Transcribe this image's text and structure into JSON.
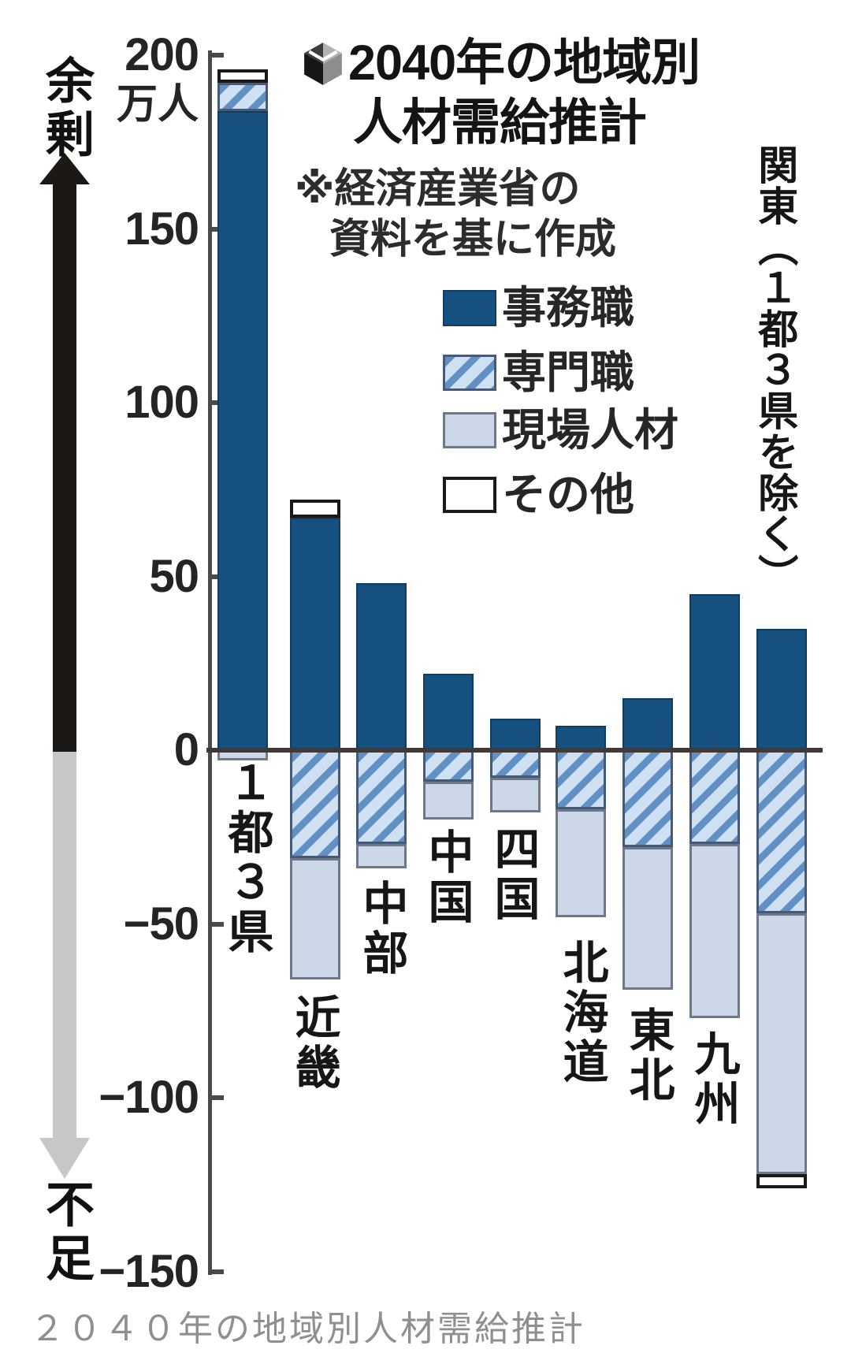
{
  "header": {
    "title_line1": "2040年の地域別",
    "title_line2": "人材需給推計",
    "note_line1": "※経済産業省の",
    "note_line2": "資料を基に作成"
  },
  "axis": {
    "unit": "万人",
    "surplus_label": "余剰",
    "shortage_label": "不足"
  },
  "legend": [
    {
      "label": "事務職",
      "swatch": "solid",
      "color": "#15507f"
    },
    {
      "label": "専門職",
      "swatch": "hatch",
      "color": "#6090c4"
    },
    {
      "label": "現場人材",
      "swatch": "light",
      "color": "#ccd7e8"
    },
    {
      "label": "その他",
      "swatch": "white",
      "color": "#ffffff"
    }
  ],
  "caption": "２０４０年の地域別人材需給推計",
  "chart_data": {
    "type": "bar",
    "stacked": true,
    "orientation": "vertical",
    "unit": "万人",
    "title": "2040年の地域別人材需給推計",
    "source_note": "※経済産業省の資料を基に作成",
    "ylabel_positive": "余剰",
    "ylabel_negative": "不足",
    "ylim": [
      -150,
      200
    ],
    "grid": false,
    "legend_position": "upper-center",
    "yticks": [
      {
        "label": "200",
        "value": 200
      },
      {
        "label": "150",
        "value": 150
      },
      {
        "label": "100",
        "value": 100
      },
      {
        "label": "50",
        "value": 50
      },
      {
        "label": "0",
        "value": 0
      },
      {
        "label": "−50",
        "value": -50
      },
      {
        "label": "−100",
        "value": -100
      },
      {
        "label": "−150",
        "value": -150
      }
    ],
    "categories": [
      "１都３県",
      "近畿",
      "中部",
      "中国",
      "四国",
      "北海道",
      "東北",
      "九州",
      "関東（１都３県を除く）"
    ],
    "regions": [
      {
        "name": "１都３県",
        "positive": [
          {
            "part": "事務職",
            "value": 184
          },
          {
            "part": "専門職",
            "value": 8
          },
          {
            "part": "その他",
            "value": 4
          }
        ],
        "negative": [
          {
            "part": "現場人材",
            "value": -3
          }
        ]
      },
      {
        "name": "近畿",
        "positive": [
          {
            "part": "事務職",
            "value": 67
          },
          {
            "part": "その他",
            "value": 5
          }
        ],
        "negative": [
          {
            "part": "専門職",
            "value": -31
          },
          {
            "part": "現場人材",
            "value": -35
          }
        ]
      },
      {
        "name": "中部",
        "positive": [
          {
            "part": "事務職",
            "value": 48
          }
        ],
        "negative": [
          {
            "part": "専門職",
            "value": -27
          },
          {
            "part": "現場人材",
            "value": -7
          }
        ]
      },
      {
        "name": "中国",
        "positive": [
          {
            "part": "事務職",
            "value": 22
          }
        ],
        "negative": [
          {
            "part": "専門職",
            "value": -9
          },
          {
            "part": "現場人材",
            "value": -11
          }
        ]
      },
      {
        "name": "四国",
        "positive": [
          {
            "part": "事務職",
            "value": 9
          }
        ],
        "negative": [
          {
            "part": "専門職",
            "value": -8
          },
          {
            "part": "現場人材",
            "value": -10
          }
        ]
      },
      {
        "name": "北海道",
        "positive": [
          {
            "part": "事務職",
            "value": 7
          }
        ],
        "negative": [
          {
            "part": "専門職",
            "value": -17
          },
          {
            "part": "現場人材",
            "value": -31
          }
        ]
      },
      {
        "name": "東北",
        "positive": [
          {
            "part": "事務職",
            "value": 15
          }
        ],
        "negative": [
          {
            "part": "専門職",
            "value": -28
          },
          {
            "part": "現場人材",
            "value": -41
          }
        ]
      },
      {
        "name": "九州",
        "positive": [
          {
            "part": "事務職",
            "value": 45
          }
        ],
        "negative": [
          {
            "part": "専門職",
            "value": -27
          },
          {
            "part": "現場人材",
            "value": -50
          }
        ]
      },
      {
        "name": "関東（１都３県を除く）",
        "positive": [
          {
            "part": "事務職",
            "value": 35
          }
        ],
        "negative": [
          {
            "part": "専門職",
            "value": -47
          },
          {
            "part": "現場人材",
            "value": -75
          },
          {
            "part": "その他",
            "value": -4
          }
        ]
      }
    ]
  }
}
